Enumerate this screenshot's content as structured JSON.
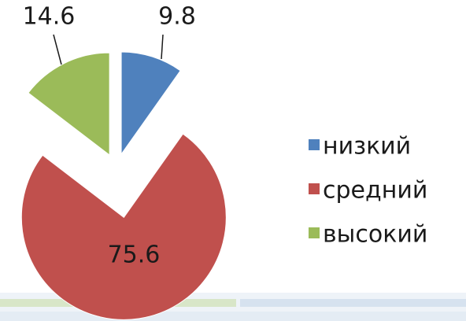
{
  "chart_data": {
    "type": "pie",
    "categories": [
      "низкий",
      "средний",
      "высокий"
    ],
    "values": [
      9.8,
      75.6,
      14.6
    ],
    "colors": [
      "#4f81bd",
      "#c0504d",
      "#9bbb59"
    ],
    "legend": "right"
  }
}
